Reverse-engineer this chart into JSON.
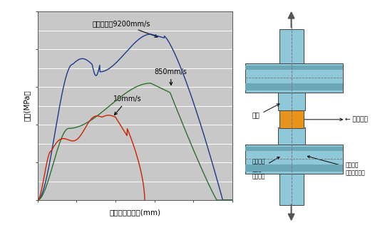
{
  "xlabel": "ストローク変位(mm)",
  "ylabel": "応力(MPa）",
  "plot_bg_color": "#c8c8c8",
  "curve_9200_color": "#1a3a8a",
  "curve_850_color": "#2d6e2d",
  "curve_10_color": "#cc2200",
  "ann_9200_text": "引張速度：9200mm/s",
  "ann_850_text": "850mm/s",
  "ann_10_text": "10mm/s",
  "diagram": {
    "steel_color": "#8fc8d8",
    "steel_dark": "#6aa8b8",
    "sealer_color": "#e8941a",
    "border_color": "#444444",
    "line_color": "#555555",
    "arrow_color": "#888888"
  }
}
